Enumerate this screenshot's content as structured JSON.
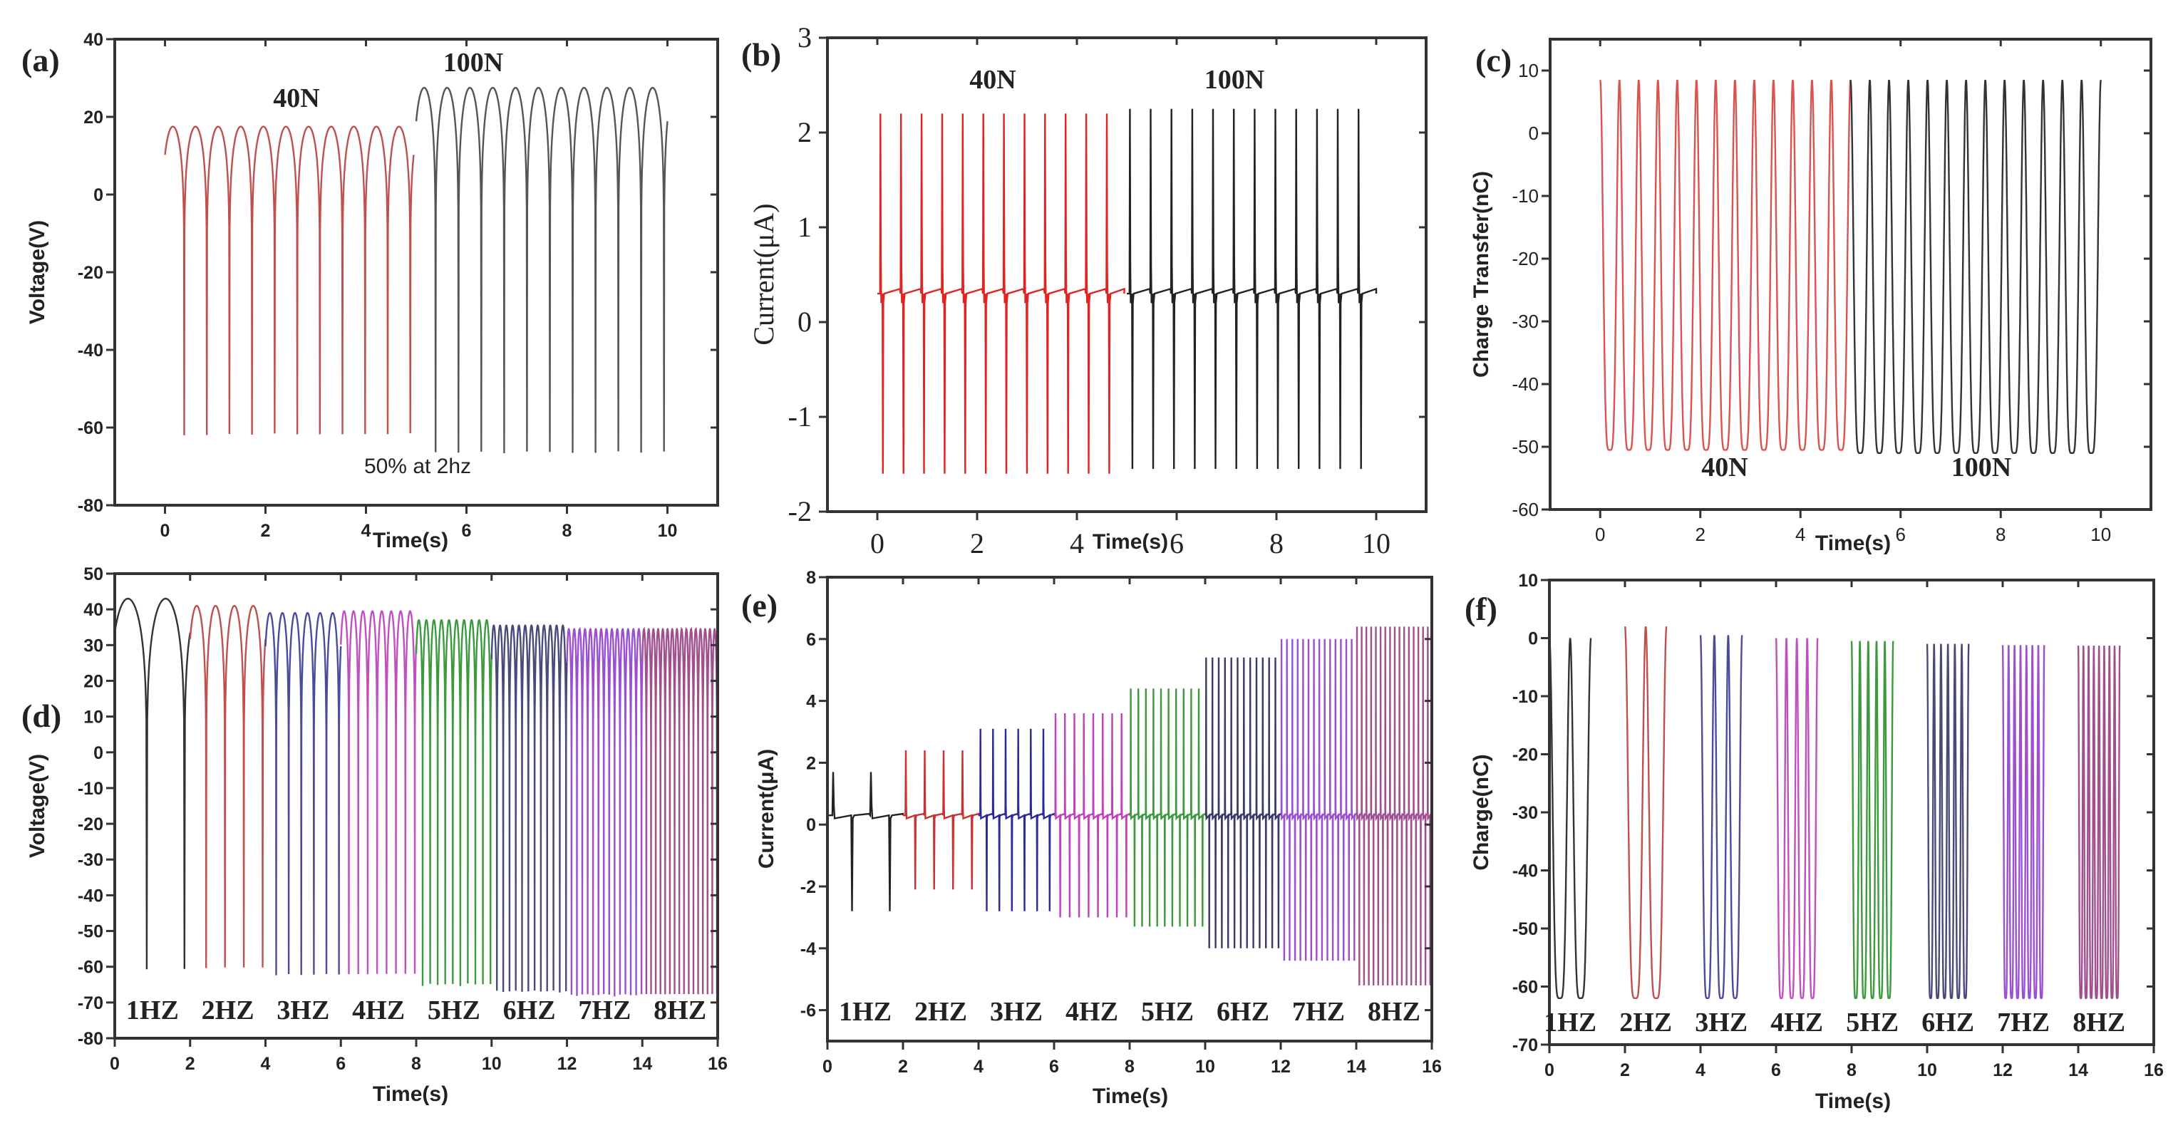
{
  "chart_data": [
    {
      "id": "a",
      "type": "line",
      "panel_label": "(a)",
      "xlabel": "Time(s)",
      "ylabel": "Voltage(V)",
      "xlim": [
        -1,
        11
      ],
      "ylim": [
        -80,
        40
      ],
      "xticks": [
        0,
        2,
        4,
        6,
        8,
        10
      ],
      "yticks": [
        -80,
        -60,
        -40,
        -20,
        0,
        20,
        40
      ],
      "waveform": "voltage",
      "series": [
        {
          "name": "40N",
          "color": "#c0504d",
          "t_start": 0,
          "t_end": 4.95,
          "cycles": 11,
          "max": 17.5,
          "min": -63
        },
        {
          "name": "100N",
          "color": "#555555",
          "t_start": 5,
          "t_end": 10,
          "cycles": 11,
          "max": 27.5,
          "min": -68
        }
      ],
      "annotations": [
        "40N",
        "100N",
        "50% at 2hz"
      ]
    },
    {
      "id": "b",
      "type": "line",
      "panel_label": "(b)",
      "xlabel": "Time(s)",
      "ylabel": "Current(μA)",
      "xlim": [
        -1,
        11
      ],
      "ylim": [
        -2,
        3
      ],
      "xticks": [
        0,
        2,
        4,
        6,
        8,
        10
      ],
      "yticks": [
        -2,
        -1,
        0,
        1,
        2,
        3
      ],
      "waveform": "current",
      "series": [
        {
          "name": "40N",
          "color": "#e02424",
          "t_start": 0,
          "t_end": 4.95,
          "cycles": 12,
          "max": 2.2,
          "min": -1.6,
          "baseline": 0.3
        },
        {
          "name": "100N",
          "color": "#222222",
          "t_start": 5,
          "t_end": 10,
          "cycles": 12,
          "max": 2.25,
          "min": -1.55,
          "baseline": 0.3
        }
      ],
      "annotations": [
        "40N",
        "100N"
      ]
    },
    {
      "id": "c",
      "type": "line",
      "panel_label": "(c)",
      "xlabel": "Time(s)",
      "ylabel": "Charge Transfer(nC)",
      "xlim": [
        -1,
        11
      ],
      "ylim": [
        -60,
        15
      ],
      "xticks": [
        0,
        2,
        4,
        6,
        8,
        10
      ],
      "yticks": [
        -60,
        -50,
        -40,
        -30,
        -20,
        -10,
        0,
        10
      ],
      "waveform": "charge",
      "series": [
        {
          "name": "40N",
          "color": "#d9534f",
          "t_start": 0,
          "t_end": 5,
          "cycles": 13,
          "max": 8.5,
          "min": -50.5
        },
        {
          "name": "100N",
          "color": "#333333",
          "t_start": 5,
          "t_end": 10,
          "cycles": 13,
          "max": 8.5,
          "min": -51
        }
      ],
      "annotations": [
        "40N",
        "100N"
      ]
    },
    {
      "id": "d",
      "type": "line",
      "panel_label": "(d)",
      "xlabel": "Time(s)",
      "ylabel": "Voltage(V)",
      "xlim": [
        0,
        16
      ],
      "ylim": [
        -80,
        50
      ],
      "xticks": [
        0,
        2,
        4,
        6,
        8,
        10,
        12,
        14,
        16
      ],
      "yticks": [
        -80,
        -70,
        -60,
        -50,
        -40,
        -30,
        -20,
        -10,
        0,
        10,
        20,
        30,
        40,
        50
      ],
      "waveform": "voltage",
      "series": [
        {
          "name": "1HZ",
          "color": "#333333",
          "t_start": 0,
          "t_end": 2,
          "cycles": 2,
          "max": 43,
          "min": -62
        },
        {
          "name": "2HZ",
          "color": "#c0504d",
          "t_start": 2,
          "t_end": 4,
          "cycles": 4,
          "max": 41,
          "min": -62
        },
        {
          "name": "3HZ",
          "color": "#4b4b9c",
          "t_start": 4,
          "t_end": 6,
          "cycles": 6,
          "max": 39,
          "min": -64
        },
        {
          "name": "4HZ",
          "color": "#c050c0",
          "t_start": 6,
          "t_end": 8,
          "cycles": 8,
          "max": 39.5,
          "min": -64
        },
        {
          "name": "5HZ",
          "color": "#3c9a3c",
          "t_start": 8,
          "t_end": 10,
          "cycles": 10,
          "max": 37,
          "min": -67
        },
        {
          "name": "6HZ",
          "color": "#4a4a7a",
          "t_start": 10,
          "t_end": 12,
          "cycles": 12,
          "max": 35.5,
          "min": -69
        },
        {
          "name": "7HZ",
          "color": "#9a50d0",
          "t_start": 12,
          "t_end": 14,
          "cycles": 14,
          "max": 34.5,
          "min": -70
        },
        {
          "name": "8HZ",
          "color": "#a05090",
          "t_start": 14,
          "t_end": 16,
          "cycles": 16,
          "max": 34.5,
          "min": -70
        }
      ],
      "annotations": [
        "1HZ",
        "2HZ",
        "3HZ",
        "4HZ",
        "5HZ",
        "6HZ",
        "7HZ",
        "8HZ"
      ]
    },
    {
      "id": "e",
      "type": "line",
      "panel_label": "(e)",
      "xlabel": "Time(s)",
      "ylabel": "Current(μA)",
      "xlim": [
        0,
        16
      ],
      "ylim": [
        -7,
        8
      ],
      "xticks": [
        0,
        2,
        4,
        6,
        8,
        10,
        12,
        14,
        16
      ],
      "yticks": [
        -6,
        -4,
        -2,
        0,
        2,
        4,
        6,
        8
      ],
      "waveform": "current",
      "series": [
        {
          "name": "1HZ",
          "color": "#222222",
          "t_start": 0,
          "t_end": 2,
          "cycles": 2,
          "max": 1.7,
          "min": -2.8,
          "baseline": 0.3
        },
        {
          "name": "2HZ",
          "color": "#c83232",
          "t_start": 2,
          "t_end": 4,
          "cycles": 4,
          "max": 2.4,
          "min": -2.1,
          "baseline": 0.3
        },
        {
          "name": "3HZ",
          "color": "#2a2a9a",
          "t_start": 4,
          "t_end": 6,
          "cycles": 6,
          "max": 3.1,
          "min": -2.8,
          "baseline": 0.3
        },
        {
          "name": "4HZ",
          "color": "#c040c0",
          "t_start": 6,
          "t_end": 8,
          "cycles": 8,
          "max": 3.6,
          "min": -3.0,
          "baseline": 0.3
        },
        {
          "name": "5HZ",
          "color": "#3c9a3c",
          "t_start": 8,
          "t_end": 10,
          "cycles": 10,
          "max": 4.4,
          "min": -3.3,
          "baseline": 0.3
        },
        {
          "name": "6HZ",
          "color": "#3a3a6a",
          "t_start": 10,
          "t_end": 12,
          "cycles": 12,
          "max": 5.4,
          "min": -4.0,
          "baseline": 0.3
        },
        {
          "name": "7HZ",
          "color": "#9a50d0",
          "t_start": 12,
          "t_end": 14,
          "cycles": 14,
          "max": 6.0,
          "min": -4.4,
          "baseline": 0.3
        },
        {
          "name": "8HZ",
          "color": "#a05090",
          "t_start": 14,
          "t_end": 16,
          "cycles": 16,
          "max": 6.4,
          "min": -5.2,
          "baseline": 0.3
        }
      ],
      "annotations": [
        "1HZ",
        "2HZ",
        "3HZ",
        "4HZ",
        "5HZ",
        "6HZ",
        "7HZ",
        "8HZ"
      ]
    },
    {
      "id": "f",
      "type": "line",
      "panel_label": "(f)",
      "xlabel": "Time(s)",
      "ylabel": "Charge(nC)",
      "xlim": [
        0,
        16
      ],
      "ylim": [
        -70,
        10
      ],
      "xticks": [
        0,
        2,
        4,
        6,
        8,
        10,
        12,
        14,
        16
      ],
      "yticks": [
        -70,
        -60,
        -50,
        -40,
        -30,
        -20,
        -10,
        0,
        10
      ],
      "waveform": "charge",
      "series": [
        {
          "name": "1HZ",
          "color": "#333333",
          "t_start": 0,
          "t_end": 1.1,
          "cycles": 2,
          "max": 0,
          "min": -62
        },
        {
          "name": "2HZ",
          "color": "#c0504d",
          "t_start": 2,
          "t_end": 3.1,
          "cycles": 2,
          "max": 2,
          "min": -62
        },
        {
          "name": "3HZ",
          "color": "#4b4b9c",
          "t_start": 4,
          "t_end": 5.1,
          "cycles": 3,
          "max": 0.5,
          "min": -62
        },
        {
          "name": "4HZ",
          "color": "#c050c0",
          "t_start": 6,
          "t_end": 7.1,
          "cycles": 4,
          "max": 0,
          "min": -62
        },
        {
          "name": "5HZ",
          "color": "#3c9a3c",
          "t_start": 8,
          "t_end": 9.1,
          "cycles": 5,
          "max": -0.5,
          "min": -62
        },
        {
          "name": "6HZ",
          "color": "#4a4a7a",
          "t_start": 10,
          "t_end": 11.1,
          "cycles": 6,
          "max": -1,
          "min": -62
        },
        {
          "name": "7HZ",
          "color": "#9a50d0",
          "t_start": 12,
          "t_end": 13.1,
          "cycles": 7,
          "max": -1.2,
          "min": -62
        },
        {
          "name": "8HZ",
          "color": "#a05090",
          "t_start": 14,
          "t_end": 15.1,
          "cycles": 8,
          "max": -1.3,
          "min": -62
        }
      ],
      "annotations": [
        "1HZ",
        "2HZ",
        "3HZ",
        "4HZ",
        "5HZ",
        "6HZ",
        "7HZ",
        "8HZ"
      ]
    }
  ]
}
